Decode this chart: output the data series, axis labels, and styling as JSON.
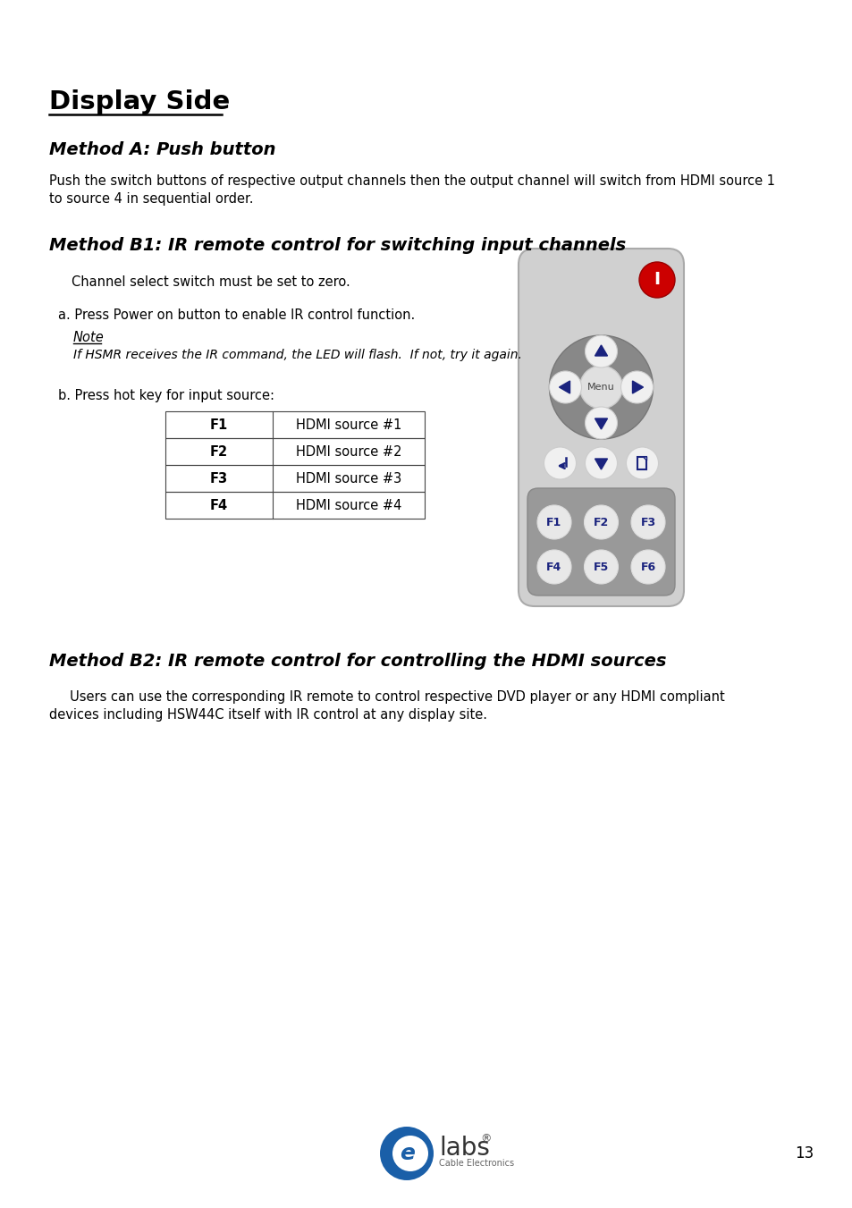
{
  "title": "Display Side",
  "method_a_title": "Method A: Push button",
  "method_a_body_1": "Push the switch buttons of respective output channels then the output channel will switch from HDMI source 1",
  "method_a_body_2": "to source 4 in sequential order.",
  "method_b1_title": "Method B1: IR remote control for switching input channels",
  "method_b1_channel": "Channel select switch must be set to zero.",
  "method_b1_a": "a. Press Power on button to enable IR control function.",
  "method_b1_note_label": "Note",
  "method_b1_note": "If HSMR receives the IR command, the LED will flash.  If not, try it again.",
  "method_b1_b": "b. Press hot key for input source:",
  "table_data": [
    [
      "F1",
      "HDMI source #1"
    ],
    [
      "F2",
      "HDMI source #2"
    ],
    [
      "F3",
      "HDMI source #3"
    ],
    [
      "F4",
      "HDMI source #4"
    ]
  ],
  "method_b2_title": "Method B2: IR remote control for controlling the HDMI sources",
  "method_b2_body_1": "     Users can use the corresponding IR remote to control respective DVD player or any HDMI compliant",
  "method_b2_body_2": "devices including HSW44C itself with IR control at any display site.",
  "footer_page": "13",
  "bg_color": "#ffffff",
  "text_color": "#000000",
  "remote_bg": "#cccccc",
  "remote_dpad_bg": "#888888",
  "remote_btn_bg": "#f0f0f0",
  "remote_btn_text": "#1a237e",
  "power_btn_color": "#cc0000"
}
